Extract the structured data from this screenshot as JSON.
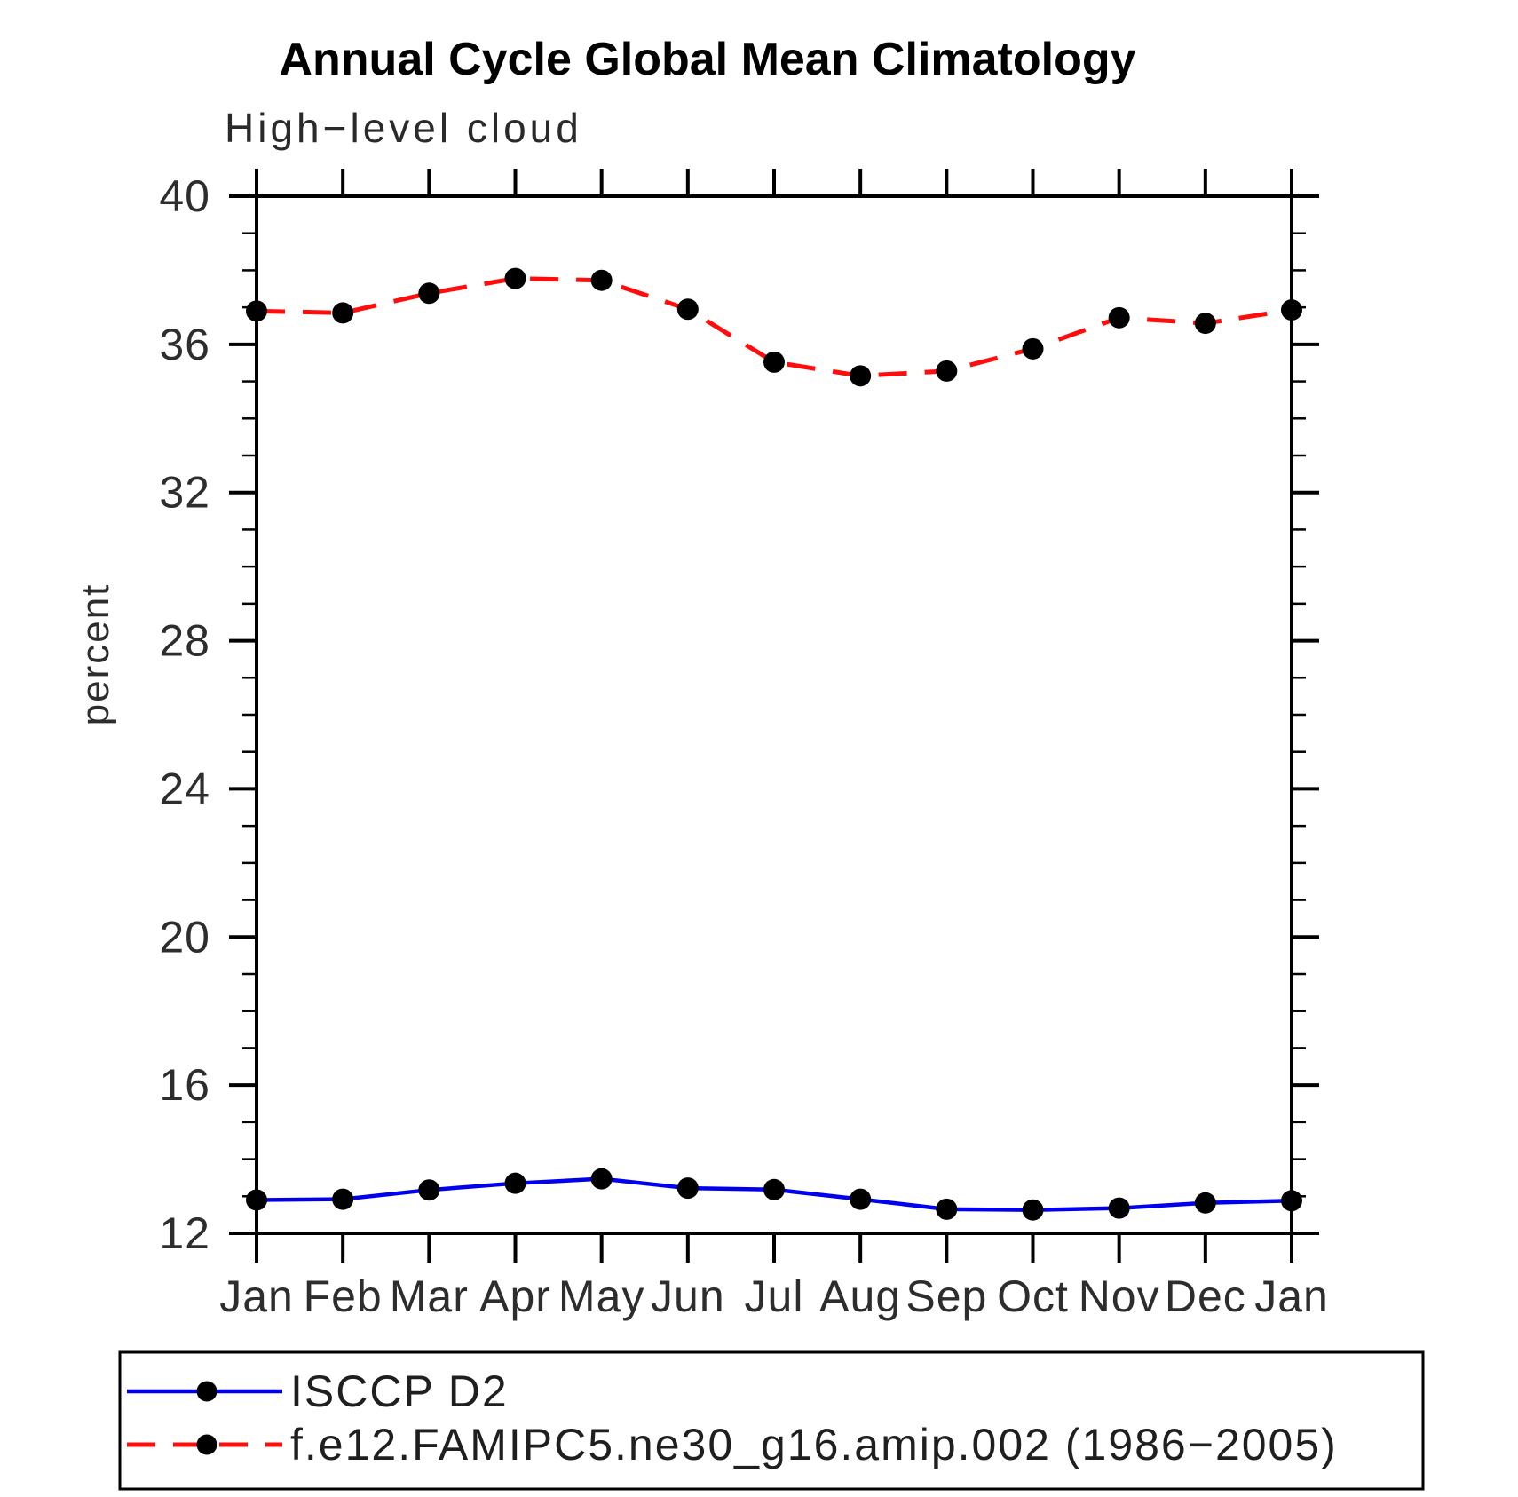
{
  "page": {
    "background": "#ffffff"
  },
  "chart_data": {
    "type": "line",
    "title": "Annual Cycle Global Mean Climatology",
    "subtitle": "High−level cloud",
    "ylabel": "percent",
    "xlabel": "",
    "categories": [
      "Jan",
      "Feb",
      "Mar",
      "Apr",
      "May",
      "Jun",
      "Jul",
      "Aug",
      "Sep",
      "Oct",
      "Nov",
      "Dec",
      "Jan"
    ],
    "ylim": [
      12,
      40
    ],
    "y_major_step": 4,
    "y_minor_step": 1,
    "grid": false,
    "legend_position": "bottom",
    "marker": "filled-circle",
    "marker_color": "#000000",
    "series": [
      {
        "name": "ISCCP D2",
        "color": "#0000ee",
        "style": "solid",
        "values": [
          12.9,
          12.92,
          13.17,
          13.35,
          13.47,
          13.22,
          13.18,
          12.92,
          12.65,
          12.63,
          12.68,
          12.82,
          12.88
        ]
      },
      {
        "name": "f.e12.FAMIPC5.ne30_g16.amip.002 (1986−2005)",
        "color": "#ff0d0d",
        "style": "dashed",
        "values": [
          36.9,
          36.85,
          37.38,
          37.78,
          37.73,
          36.95,
          35.52,
          35.15,
          35.28,
          35.88,
          36.72,
          36.57,
          36.93
        ]
      }
    ]
  }
}
